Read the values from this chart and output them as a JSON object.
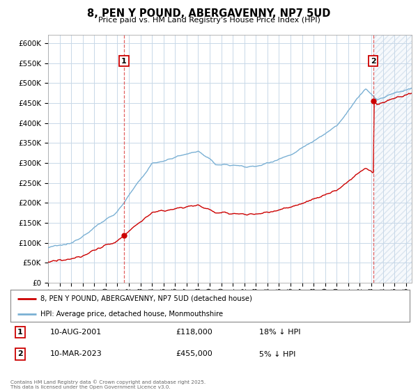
{
  "title": "8, PEN Y POUND, ABERGAVENNY, NP7 5UD",
  "subtitle": "Price paid vs. HM Land Registry's House Price Index (HPI)",
  "legend_label_red": "8, PEN Y POUND, ABERGAVENNY, NP7 5UD (detached house)",
  "legend_label_blue": "HPI: Average price, detached house, Monmouthshire",
  "transaction1_date": "10-AUG-2001",
  "transaction1_price": "£118,000",
  "transaction1_hpi": "18% ↓ HPI",
  "transaction1_year": 2001.58,
  "transaction1_value": 118000,
  "transaction2_date": "10-MAR-2023",
  "transaction2_price": "£455,000",
  "transaction2_hpi": "5% ↓ HPI",
  "transaction2_year": 2023.17,
  "transaction2_value": 455000,
  "footer": "Contains HM Land Registry data © Crown copyright and database right 2025.\nThis data is licensed under the Open Government Licence v3.0.",
  "ylim": [
    0,
    620000
  ],
  "yticks": [
    0,
    50000,
    100000,
    150000,
    200000,
    250000,
    300000,
    350000,
    400000,
    450000,
    500000,
    550000,
    600000
  ],
  "xlim_start": 1995.0,
  "xlim_end": 2026.5,
  "background_color": "#ffffff",
  "grid_color": "#c8d8e8",
  "line_color_red": "#cc0000",
  "line_color_blue": "#7ab0d4",
  "vline_color": "#dd4444",
  "marker_box_color": "#cc0000",
  "hatch_color": "#c8d8e8"
}
